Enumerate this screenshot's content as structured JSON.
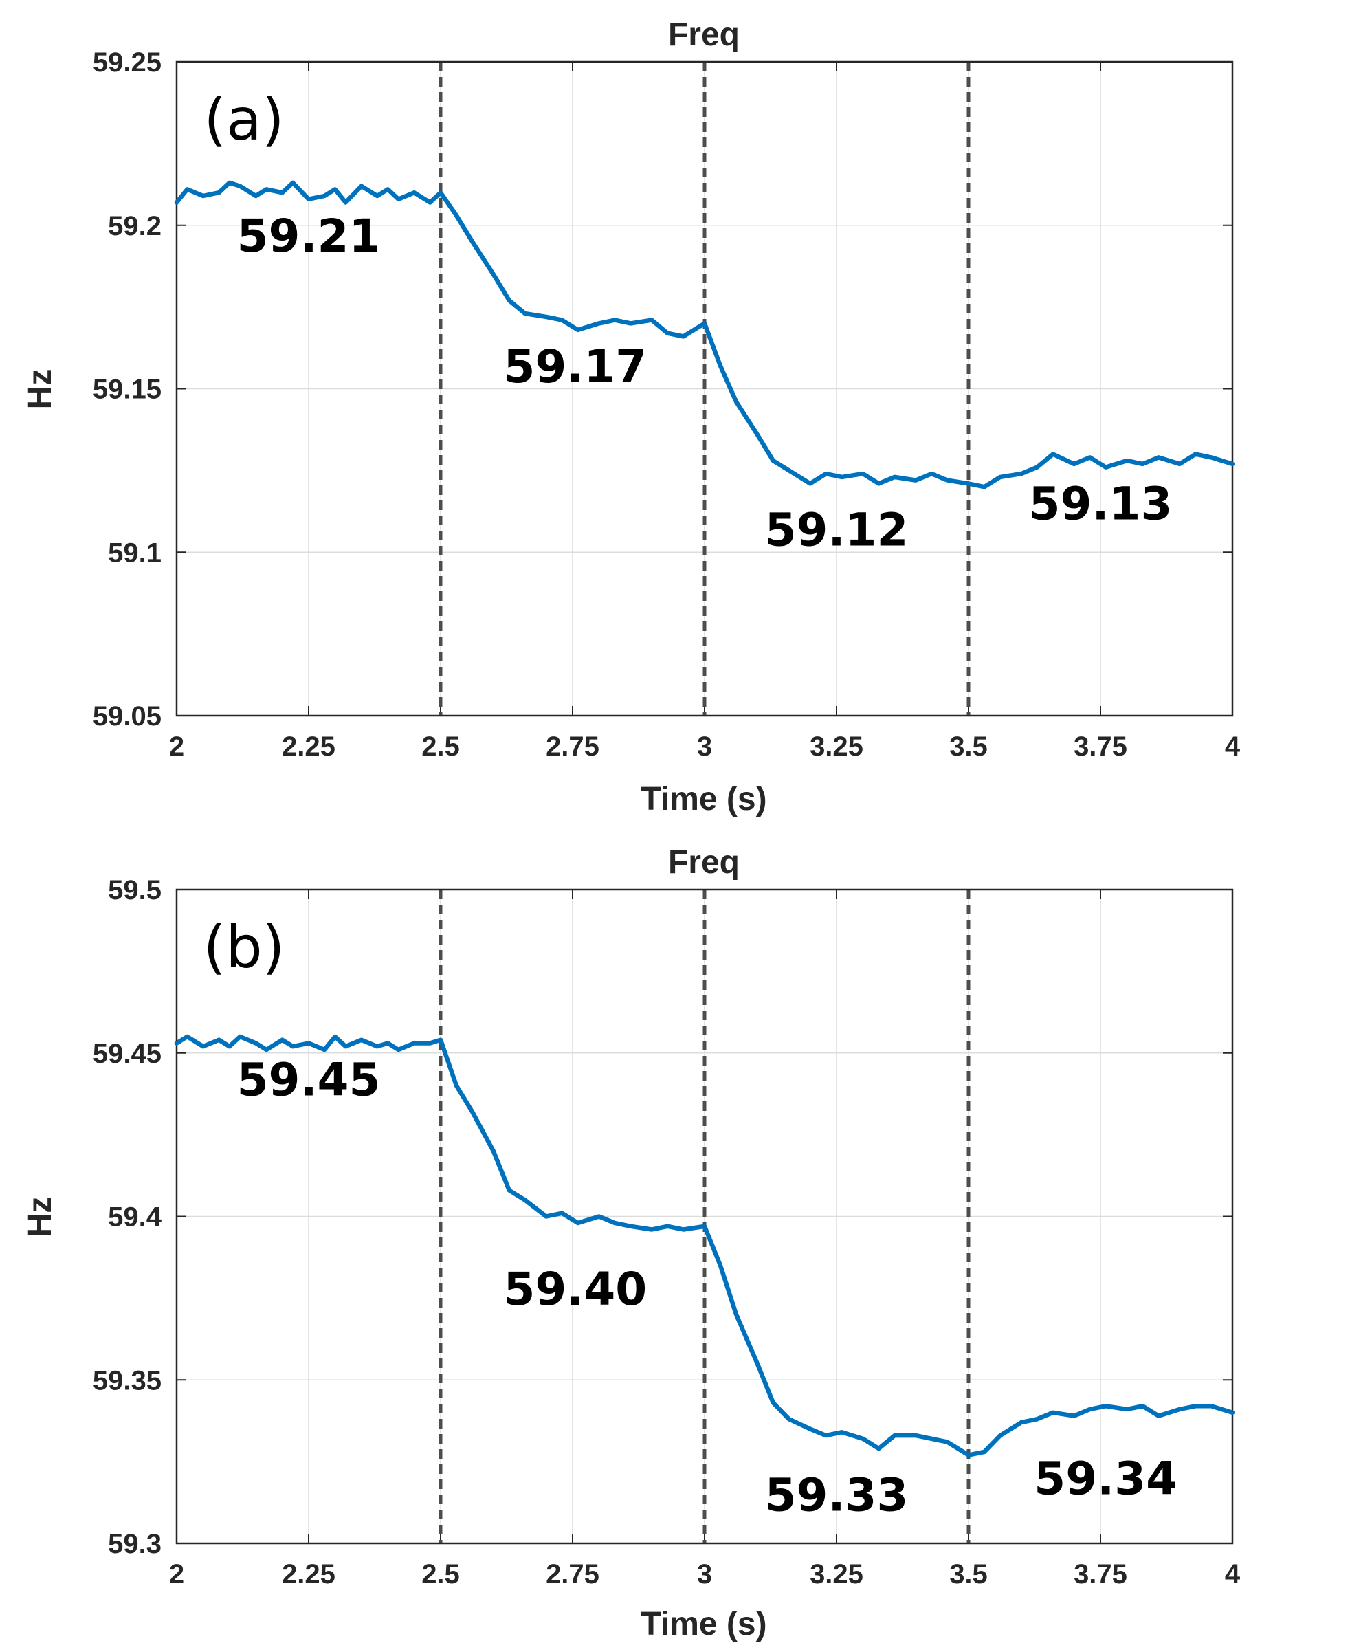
{
  "chart_data": [
    {
      "type": "line",
      "title": "Freq",
      "panel_label": "(a)",
      "xlabel": "Time (s)",
      "ylabel": "Hz",
      "xlim": [
        2,
        4
      ],
      "ylim": [
        59.05,
        59.25
      ],
      "x_ticks": [
        2,
        2.25,
        2.5,
        2.75,
        3,
        3.25,
        3.5,
        3.75,
        4
      ],
      "x_tick_labels": [
        "2",
        "2.25",
        "2.5",
        "2.75",
        "3",
        "3.25",
        "3.5",
        "3.75",
        "4"
      ],
      "y_ticks": [
        59.05,
        59.1,
        59.15,
        59.2,
        59.25
      ],
      "y_tick_labels": [
        "59.05",
        "59.1",
        "59.15",
        "59.2",
        "59.25"
      ],
      "grid": true,
      "vertical_markers": [
        2.5,
        3.0,
        3.5
      ],
      "series": [
        {
          "color": "#0072bd",
          "x": [
            2.0,
            2.02,
            2.05,
            2.08,
            2.1,
            2.12,
            2.15,
            2.17,
            2.2,
            2.22,
            2.25,
            2.28,
            2.3,
            2.32,
            2.35,
            2.38,
            2.4,
            2.42,
            2.45,
            2.48,
            2.5,
            2.53,
            2.56,
            2.6,
            2.63,
            2.66,
            2.7,
            2.73,
            2.76,
            2.8,
            2.83,
            2.86,
            2.9,
            2.93,
            2.96,
            3.0,
            3.03,
            3.06,
            3.1,
            3.13,
            3.16,
            3.2,
            3.23,
            3.26,
            3.3,
            3.33,
            3.36,
            3.4,
            3.43,
            3.46,
            3.5,
            3.53,
            3.56,
            3.6,
            3.63,
            3.66,
            3.7,
            3.73,
            3.76,
            3.8,
            3.83,
            3.86,
            3.9,
            3.93,
            3.96,
            4.0
          ],
          "y": [
            59.207,
            59.211,
            59.209,
            59.21,
            59.213,
            59.212,
            59.209,
            59.211,
            59.21,
            59.213,
            59.208,
            59.209,
            59.211,
            59.207,
            59.212,
            59.209,
            59.211,
            59.208,
            59.21,
            59.207,
            59.21,
            59.203,
            59.195,
            59.185,
            59.177,
            59.173,
            59.172,
            59.171,
            59.168,
            59.17,
            59.171,
            59.17,
            59.171,
            59.167,
            59.166,
            59.17,
            59.157,
            59.146,
            59.136,
            59.128,
            59.125,
            59.121,
            59.124,
            59.123,
            59.124,
            59.121,
            59.123,
            59.122,
            59.124,
            59.122,
            59.121,
            59.12,
            59.123,
            59.124,
            59.126,
            59.13,
            59.127,
            59.129,
            59.126,
            59.128,
            59.127,
            59.129,
            59.127,
            59.13,
            59.129,
            59.127
          ]
        }
      ],
      "annotations": [
        {
          "text": "59.21",
          "x": 2.25,
          "y": 59.192
        },
        {
          "text": "59.17",
          "x": 2.755,
          "y": 59.152
        },
        {
          "text": "59.12",
          "x": 3.25,
          "y": 59.102
        },
        {
          "text": "59.13",
          "x": 3.75,
          "y": 59.11
        }
      ]
    },
    {
      "type": "line",
      "title": "Freq",
      "panel_label": "(b)",
      "xlabel": "Time (s)",
      "ylabel": "Hz",
      "xlim": [
        2,
        4
      ],
      "ylim": [
        59.3,
        59.5
      ],
      "x_ticks": [
        2,
        2.25,
        2.5,
        2.75,
        3,
        3.25,
        3.5,
        3.75,
        4
      ],
      "x_tick_labels": [
        "2",
        "2.25",
        "2.5",
        "2.75",
        "3",
        "3.25",
        "3.5",
        "3.75",
        "4"
      ],
      "y_ticks": [
        59.3,
        59.35,
        59.4,
        59.45,
        59.5
      ],
      "y_tick_labels": [
        "59.3",
        "59.35",
        "59.4",
        "59.45",
        "59.5"
      ],
      "grid": true,
      "vertical_markers": [
        2.5,
        3.0,
        3.5
      ],
      "series": [
        {
          "color": "#0072bd",
          "x": [
            2.0,
            2.02,
            2.05,
            2.08,
            2.1,
            2.12,
            2.15,
            2.17,
            2.2,
            2.22,
            2.25,
            2.28,
            2.3,
            2.32,
            2.35,
            2.38,
            2.4,
            2.42,
            2.45,
            2.48,
            2.5,
            2.53,
            2.56,
            2.6,
            2.63,
            2.66,
            2.7,
            2.73,
            2.76,
            2.8,
            2.83,
            2.86,
            2.9,
            2.93,
            2.96,
            3.0,
            3.03,
            3.06,
            3.1,
            3.13,
            3.16,
            3.2,
            3.23,
            3.26,
            3.3,
            3.33,
            3.36,
            3.4,
            3.43,
            3.46,
            3.5,
            3.53,
            3.56,
            3.6,
            3.63,
            3.66,
            3.7,
            3.73,
            3.76,
            3.8,
            3.83,
            3.86,
            3.9,
            3.93,
            3.96,
            4.0
          ],
          "y": [
            59.453,
            59.455,
            59.452,
            59.454,
            59.452,
            59.455,
            59.453,
            59.451,
            59.454,
            59.452,
            59.453,
            59.451,
            59.455,
            59.452,
            59.454,
            59.452,
            59.453,
            59.451,
            59.453,
            59.453,
            59.454,
            59.44,
            59.432,
            59.42,
            59.408,
            59.405,
            59.4,
            59.401,
            59.398,
            59.4,
            59.398,
            59.397,
            59.396,
            59.397,
            59.396,
            59.397,
            59.385,
            59.37,
            59.355,
            59.343,
            59.338,
            59.335,
            59.333,
            59.334,
            59.332,
            59.329,
            59.333,
            59.333,
            59.332,
            59.331,
            59.327,
            59.328,
            59.333,
            59.337,
            59.338,
            59.34,
            59.339,
            59.341,
            59.342,
            59.341,
            59.342,
            59.339,
            59.341,
            59.342,
            59.342,
            59.34
          ]
        }
      ],
      "annotations": [
        {
          "text": "59.45",
          "x": 2.25,
          "y": 59.437
        },
        {
          "text": "59.40",
          "x": 2.755,
          "y": 59.373
        },
        {
          "text": "59.33",
          "x": 3.25,
          "y": 59.31
        },
        {
          "text": "59.34",
          "x": 3.76,
          "y": 59.315
        }
      ]
    }
  ]
}
